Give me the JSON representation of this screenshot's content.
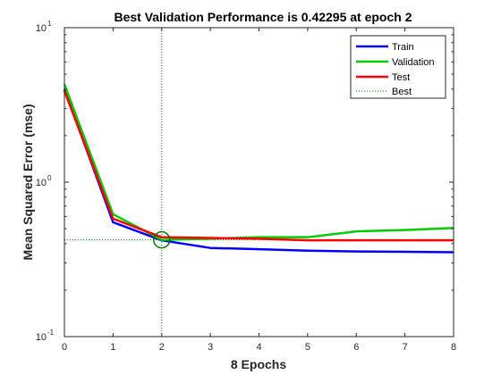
{
  "chart_data": {
    "type": "line",
    "title": "Best Validation Performance is 0.42295 at epoch 2",
    "xlabel": "8 Epochs",
    "ylabel": "Mean Squared Error  (mse)",
    "xlim": [
      0,
      8
    ],
    "ylim": [
      0.1,
      10
    ],
    "yscale": "log",
    "x_ticks": [
      "0",
      "1",
      "2",
      "3",
      "4",
      "5",
      "6",
      "7",
      "8"
    ],
    "y_ticks": [
      {
        "value": 0.1,
        "base": "10",
        "exp": "-1"
      },
      {
        "value": 1,
        "base": "10",
        "exp": "0"
      },
      {
        "value": 10,
        "base": "10",
        "exp": "1"
      }
    ],
    "x": [
      0,
      1,
      2,
      3,
      4,
      5,
      6,
      7,
      8
    ],
    "series": [
      {
        "name": "Train",
        "color": "#0000ff",
        "values": [
          4.0,
          0.55,
          0.42,
          0.375,
          0.368,
          0.36,
          0.356,
          0.354,
          0.352
        ]
      },
      {
        "name": "Validation",
        "color": "#00cc00",
        "values": [
          4.3,
          0.62,
          0.42295,
          0.43,
          0.44,
          0.44,
          0.48,
          0.49,
          0.505
        ]
      },
      {
        "name": "Test",
        "color": "#ff0000",
        "values": [
          3.9,
          0.58,
          0.44,
          0.435,
          0.43,
          0.42,
          0.42,
          0.42,
          0.42
        ]
      }
    ],
    "best": {
      "name": "Best",
      "epoch": 2,
      "value": 0.42295,
      "color": "#007700",
      "line_style": "dotted",
      "marker": "circle"
    },
    "legend_position": "top-right",
    "grid": false
  }
}
